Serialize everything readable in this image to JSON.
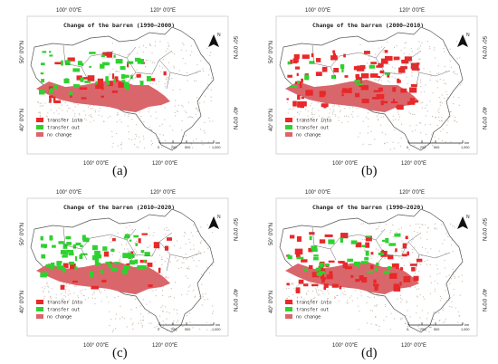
{
  "figure": {
    "panels": [
      {
        "letter": "(a)",
        "title": "Change of the barren (1990–2000)",
        "lon_top_left": "100° 0′0″E",
        "lon_top_right": "120° 0′0″E",
        "lon_bottom_left": "100° 0′0″E",
        "lon_bottom_right": "120° 0′0″E",
        "lat_upper": "50° 0′0″N",
        "lat_lower": "40° 0′0″N",
        "lat_upper_right": "50° 0′0″N",
        "lat_lower_right": "40° 0′0″N"
      },
      {
        "letter": "(b)",
        "title": "Change of the barren (2000–2010)",
        "lon_top_left": "100° 0′0″E",
        "lon_top_right": "120° 0′0″E",
        "lon_bottom_left": "100° 0′0″E",
        "lon_bottom_right": "120° 0′0″E",
        "lat_upper": "50° 0′0″N",
        "lat_lower": "40° 0′0″N",
        "lat_upper_right": "50° 0′0″N",
        "lat_lower_right": "40° 0′0″N"
      },
      {
        "letter": "(c)",
        "title": "Change of the barren (2010–2020)",
        "lon_top_left": "100° 0′0″E",
        "lon_top_right": "120° 0′0″E",
        "lon_bottom_left": "100° 0′0″E",
        "lon_bottom_right": "120° 0′0″E",
        "lat_upper": "50° 0′0″N",
        "lat_lower": "40° 0′0″N",
        "lat_upper_right": "50° 0′0″N",
        "lat_lower_right": "40° 0′0″N"
      },
      {
        "letter": "(d)",
        "title": "Change of the barren (1990–2020)",
        "lon_top_left": "100° 0′0″E",
        "lon_top_right": "120° 0′0″E",
        "lon_bottom_left": "100° 0′0″E",
        "lon_bottom_right": "120° 0′0″E",
        "lat_upper": "50° 0′0″N",
        "lat_lower": "40° 0′0″N",
        "lat_upper_right": "50° 0′0″N",
        "lat_lower_right": "40° 0′0″N"
      }
    ],
    "legend": {
      "transfer_into": "transfer into",
      "transfer_out": "transfer out",
      "no_change": "no change"
    },
    "north_label": "N",
    "scalebar": {
      "ticks": [
        "0",
        "250",
        "500",
        "1,000"
      ],
      "unit": "km"
    },
    "colors": {
      "transfer_into": "#e8282a",
      "transfer_out": "#2fd12f",
      "no_change": "#d9666b",
      "land": "#ffffff",
      "border": "#555555",
      "speckle": "#a0866e"
    }
  }
}
